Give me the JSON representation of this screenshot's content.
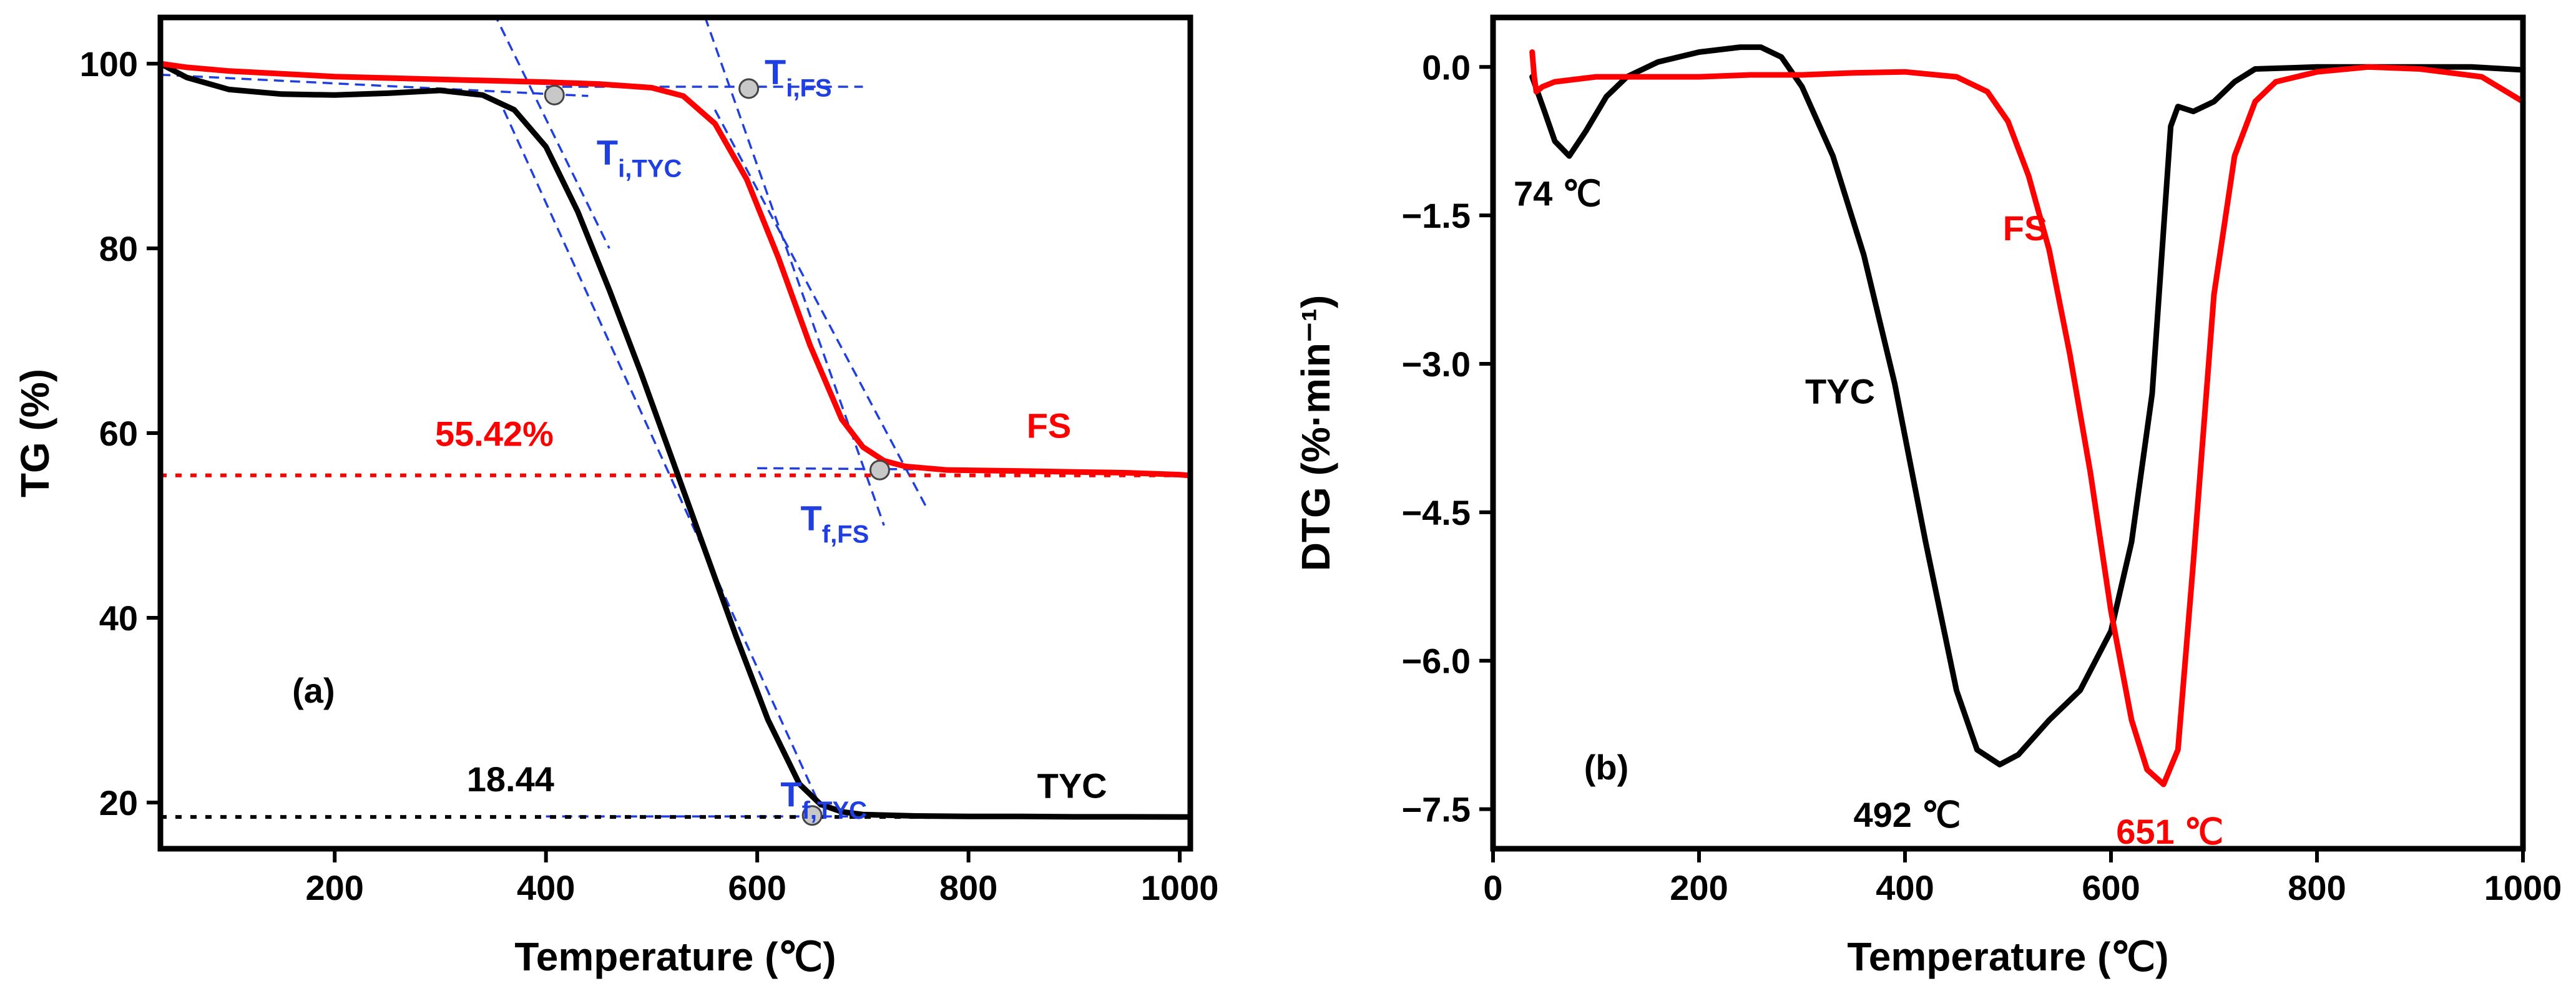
{
  "chart_data": [
    {
      "id": "a",
      "type": "line",
      "panel_label": "(a)",
      "xlabel": "Temperature (℃)",
      "ylabel": "TG (%)",
      "xlim": [
        35,
        1010
      ],
      "ylim": [
        15,
        105
      ],
      "xticks": [
        200,
        400,
        600,
        800,
        1000
      ],
      "yticks": [
        20,
        40,
        60,
        80,
        100
      ],
      "xtick_labels": [
        "200",
        "400",
        "600",
        "800",
        "1000"
      ],
      "ytick_labels": [
        "20",
        "40",
        "60",
        "80",
        "100"
      ],
      "series": [
        {
          "name": "TYC",
          "color": "#000000",
          "x": [
            35,
            60,
            100,
            150,
            200,
            250,
            300,
            340,
            370,
            400,
            430,
            460,
            490,
            520,
            550,
            580,
            610,
            640,
            660,
            680,
            700,
            750,
            800,
            850,
            900,
            950,
            1000,
            1010
          ],
          "y": [
            100.0,
            98.5,
            97.2,
            96.7,
            96.6,
            96.8,
            97.1,
            96.6,
            95.0,
            91.0,
            84.0,
            75.5,
            66.5,
            57.0,
            47.5,
            38.0,
            29.0,
            22.0,
            19.8,
            19.0,
            18.7,
            18.55,
            18.5,
            18.5,
            18.45,
            18.45,
            18.44,
            18.44
          ]
        },
        {
          "name": "FS",
          "color": "#ff0000",
          "x": [
            35,
            60,
            100,
            200,
            300,
            400,
            450,
            500,
            530,
            560,
            590,
            620,
            650,
            680,
            700,
            720,
            740,
            780,
            850,
            900,
            950,
            1000,
            1010
          ],
          "y": [
            100.0,
            99.6,
            99.2,
            98.6,
            98.3,
            98.0,
            97.8,
            97.4,
            96.5,
            93.5,
            87.5,
            79.0,
            69.5,
            61.5,
            58.5,
            57.0,
            56.4,
            56.0,
            55.9,
            55.8,
            55.7,
            55.5,
            55.4
          ]
        }
      ],
      "reference_lines": [
        {
          "label": "55.42%",
          "y": 55.42,
          "color": "#ff0000"
        },
        {
          "label": "18.44",
          "y": 18.44,
          "color": "#000000"
        }
      ],
      "tangent_lines": [
        {
          "x": [
            35,
            440
          ],
          "y": [
            98.8,
            96.5
          ]
        },
        {
          "x": [
            310,
            460
          ],
          "y": [
            115,
            80
          ]
        },
        {
          "x": [
            360,
            660
          ],
          "y": [
            95,
            19.5
          ]
        },
        {
          "x": [
            400,
            700
          ],
          "y": [
            18.5,
            18.5
          ]
        },
        {
          "x": [
            400,
            700
          ],
          "y": [
            97.5,
            97.5
          ]
        },
        {
          "x": [
            520,
            720
          ],
          "y": [
            115,
            50
          ]
        },
        {
          "x": [
            560,
            760
          ],
          "y": [
            95,
            52
          ]
        },
        {
          "x": [
            600,
            850
          ],
          "y": [
            56.2,
            56.0
          ]
        }
      ],
      "markers": [
        {
          "label": "Ti,TYC",
          "text": "T",
          "sub": "i,TYC",
          "x": 408,
          "y": 96.6
        },
        {
          "label": "Ti,FS",
          "text": "T",
          "sub": "i,FS",
          "x": 592,
          "y": 97.3
        },
        {
          "label": "Tf,FS",
          "text": "T",
          "sub": "f,FS",
          "x": 716,
          "y": 56.0
        },
        {
          "label": "Tf,TYC",
          "text": "T",
          "sub": "f,TYC",
          "x": 652,
          "y": 18.6
        }
      ],
      "series_labels": [
        {
          "text": "FS",
          "x": 855,
          "y": 59.5,
          "color": "#ff0000"
        },
        {
          "text": "TYC",
          "x": 865,
          "y": 20.5,
          "color": "#000000"
        }
      ],
      "label_55": {
        "text": "55.42%",
        "x": 295,
        "y": 58.6
      },
      "label_18": {
        "text": "18.44",
        "x": 325,
        "y": 21.2
      },
      "panel_pos": {
        "x": 180,
        "y": 30.8
      }
    },
    {
      "id": "b",
      "type": "line",
      "panel_label": "(b)",
      "xlabel": "Temperature (℃)",
      "ylabel": "DTG (%·min⁻¹)",
      "xlim": [
        0,
        1000
      ],
      "ylim": [
        -7.9,
        0.5
      ],
      "xticks": [
        0,
        200,
        400,
        600,
        800,
        1000
      ],
      "yticks": [
        0.0,
        -1.5,
        -3.0,
        -4.5,
        -6.0,
        -7.5
      ],
      "xtick_labels": [
        "0",
        "200",
        "400",
        "600",
        "800",
        "1000"
      ],
      "ytick_labels": [
        "0.0",
        "−1.5",
        "−3.0",
        "−4.5",
        "−6.0",
        "−7.5"
      ],
      "series": [
        {
          "name": "TYC",
          "color": "#000000",
          "x": [
            38,
            50,
            60,
            74,
            90,
            110,
            130,
            160,
            200,
            240,
            260,
            280,
            300,
            330,
            360,
            390,
            420,
            450,
            470,
            492,
            510,
            540,
            570,
            600,
            620,
            640,
            650,
            658,
            665,
            680,
            700,
            720,
            740,
            800,
            850,
            900,
            950,
            1000
          ],
          "y": [
            -0.1,
            -0.45,
            -0.75,
            -0.9,
            -0.65,
            -0.3,
            -0.1,
            0.05,
            0.15,
            0.2,
            0.2,
            0.1,
            -0.2,
            -0.9,
            -1.9,
            -3.2,
            -4.8,
            -6.3,
            -6.9,
            -7.05,
            -6.95,
            -6.6,
            -6.3,
            -5.7,
            -4.8,
            -3.3,
            -1.8,
            -0.6,
            -0.4,
            -0.45,
            -0.35,
            -0.15,
            -0.02,
            0.0,
            0.0,
            0.0,
            0.0,
            -0.03
          ]
        },
        {
          "name": "FS",
          "color": "#ff0000",
          "x": [
            38,
            40,
            42,
            48,
            60,
            100,
            150,
            200,
            250,
            300,
            350,
            400,
            450,
            480,
            500,
            520,
            540,
            560,
            580,
            600,
            620,
            635,
            651,
            665,
            680,
            700,
            720,
            740,
            760,
            800,
            850,
            900,
            960,
            1000
          ],
          "y": [
            0.15,
            -0.1,
            -0.25,
            -0.2,
            -0.15,
            -0.1,
            -0.1,
            -0.1,
            -0.08,
            -0.08,
            -0.06,
            -0.05,
            -0.1,
            -0.25,
            -0.55,
            -1.1,
            -1.85,
            -2.9,
            -4.1,
            -5.5,
            -6.6,
            -7.1,
            -7.25,
            -6.9,
            -5.0,
            -2.3,
            -0.9,
            -0.35,
            -0.15,
            -0.05,
            0.0,
            -0.02,
            -0.1,
            -0.35
          ]
        }
      ],
      "annotations": [
        {
          "text": "74 ℃",
          "x": 20,
          "y": -1.4,
          "color": "#000000"
        },
        {
          "text": "492 ℃",
          "x": 350,
          "y": -7.68,
          "color": "#000000"
        },
        {
          "text": "651 ℃",
          "x": 605,
          "y": -7.85,
          "color": "#ff0000"
        },
        {
          "text": "TYC",
          "x": 303,
          "y": -3.4,
          "color": "#000000"
        },
        {
          "text": "FS",
          "x": 495,
          "y": -1.75,
          "color": "#ff0000"
        }
      ],
      "panel_pos": {
        "x": 110,
        "y": -7.2
      }
    }
  ]
}
